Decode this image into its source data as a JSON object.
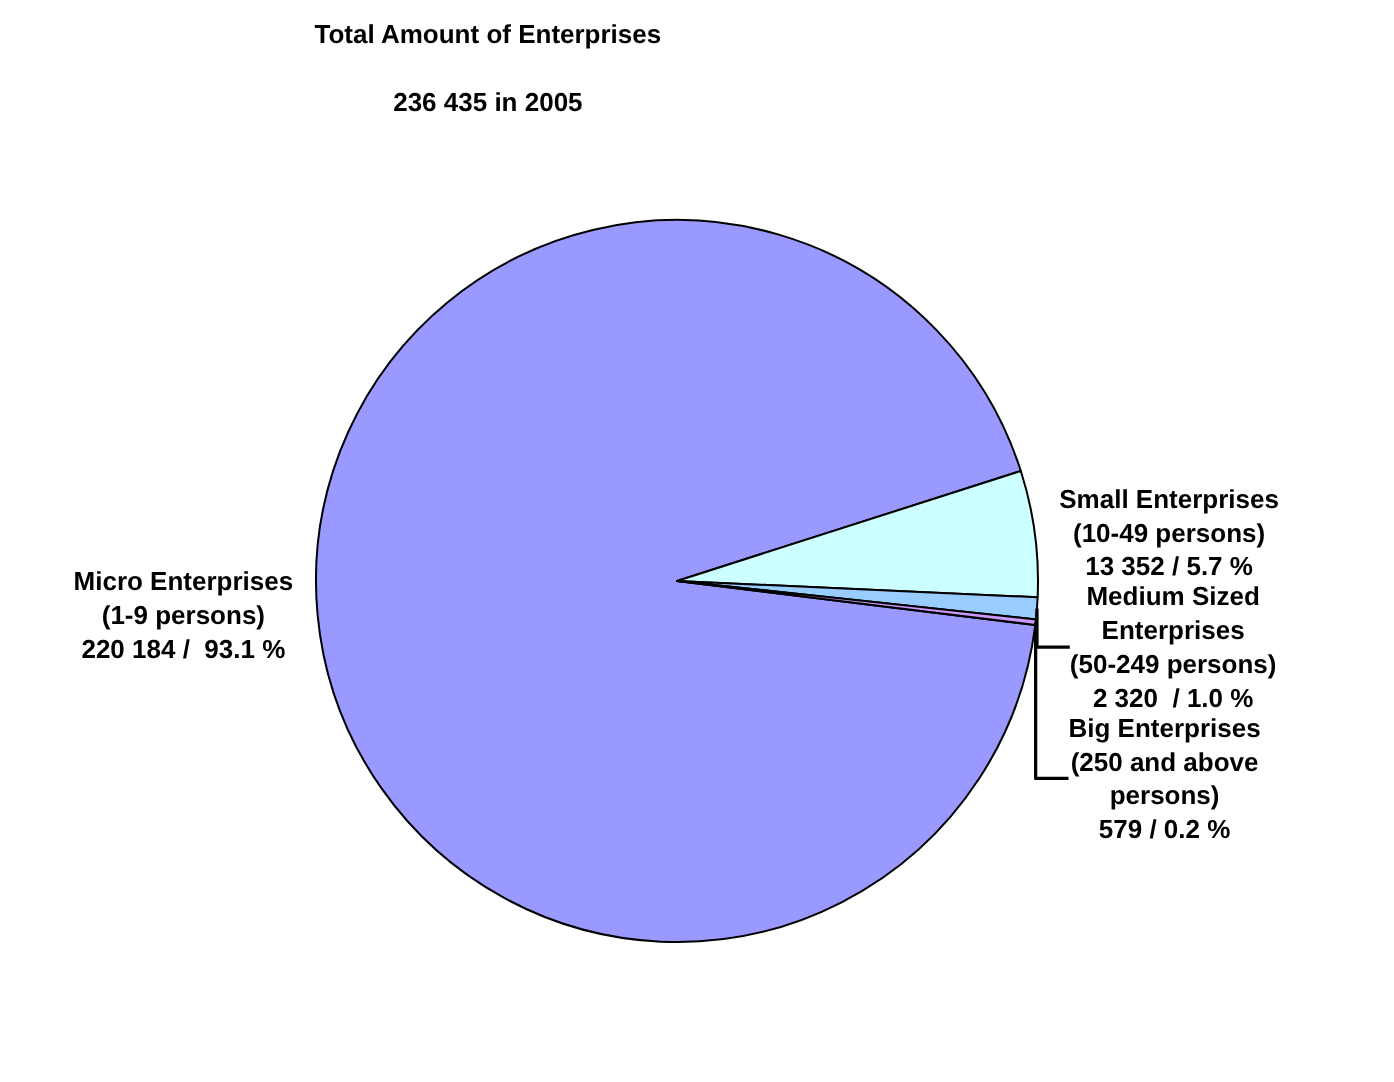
{
  "chart_data": {
    "type": "pie",
    "title": "Total Amount of Enterprises",
    "subtitle": "236 435 in 2005",
    "categories": [
      "Micro Enterprises\n(1-9 persons)",
      "Small Enterprises\n(10-49 persons)",
      "Medium Sized\nEnterprises\n(50-249 persons)",
      "Big Enterprises\n(250 and above\npersons)"
    ],
    "values": [
      220184,
      13352,
      2320,
      579
    ],
    "value_labels": [
      "220 184 /  93.1 %",
      "13 352 / 5.7 %",
      "2 320  / 1.0 %",
      "579 / 0.2 %"
    ],
    "colors": [
      "#9999ff",
      "#ccffff",
      "#99ccff",
      "#cc99ff"
    ],
    "legend": false
  }
}
